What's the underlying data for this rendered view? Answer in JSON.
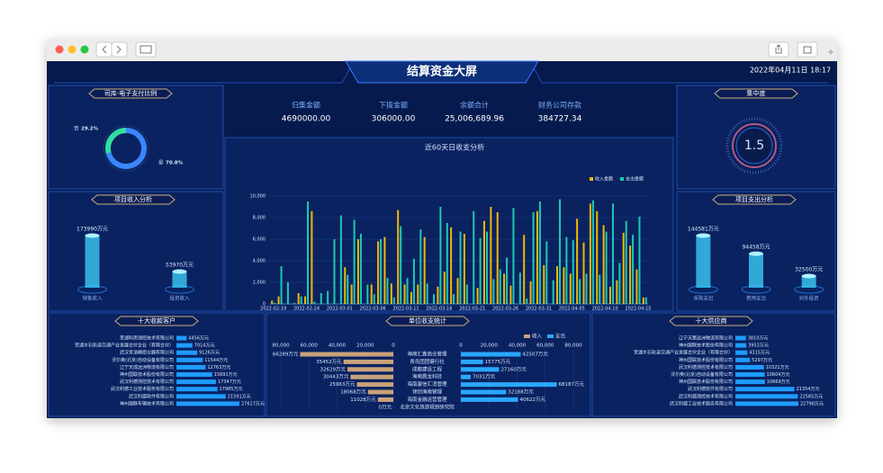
{
  "header": {
    "title": "结算资金大屏",
    "datetime": "2022年04月11日 18:17"
  },
  "stats": [
    {
      "label": "归集金额",
      "value": "4690000.00"
    },
    {
      "label": "下拨金额",
      "value": "306000.00"
    },
    {
      "label": "余额合计",
      "value": "25,006,689.96"
    },
    {
      "label": "财务公司存款",
      "value": "384727.34"
    }
  ],
  "chart_data": [
    {
      "type": "donut",
      "title": "司库-电子支付比例",
      "categories": [
        "否",
        "是"
      ],
      "values": [
        29.2,
        70.8
      ],
      "value_labels": [
        "29.2%",
        "70.8%"
      ],
      "colors": [
        "#2fe0a0",
        "#3a86ff"
      ]
    },
    {
      "type": "gauge",
      "title": "集中度",
      "value": 1.5
    },
    {
      "type": "cylinder",
      "title": "项目收入分析",
      "categories": [
        "销售收入",
        "投资收入"
      ],
      "values": [
        173990,
        53970
      ],
      "value_labels": [
        "173990万元",
        "53970万元"
      ],
      "color": "#3fd6ff"
    },
    {
      "type": "cylinder",
      "title": "项目支出分析",
      "categories": [
        "采购支出",
        "费用支出",
        "对外投资"
      ],
      "values": [
        144581,
        94458,
        32500
      ],
      "value_labels": [
        "144581万元",
        "94458万元",
        "32500万元"
      ],
      "color": "#3fd6ff"
    },
    {
      "type": "bar",
      "title": "近60天日收支分析",
      "categories": [
        "2022-02-19",
        null,
        null,
        null,
        null,
        "2022-02-24",
        null,
        null,
        null,
        null,
        "2022-03-01",
        null,
        null,
        null,
        null,
        "2022-03-06",
        null,
        null,
        null,
        null,
        "2022-03-11",
        null,
        null,
        null,
        null,
        "2022-03-16",
        null,
        null,
        null,
        null,
        "2022-03-21",
        null,
        null,
        null,
        null,
        "2022-03-26",
        null,
        null,
        null,
        null,
        "2022-03-31",
        null,
        null,
        null,
        null,
        "2022-04-05",
        null,
        null,
        null,
        null,
        "2022-04-10",
        null,
        null,
        null,
        null,
        "2022-04-15",
        null
      ],
      "series": [
        {
          "name": "收入金额",
          "color": "#f2b705",
          "values": [
            300,
            700,
            0,
            0,
            1000,
            700,
            8600,
            0,
            0,
            0,
            0,
            3400,
            1800,
            6000,
            0,
            1800,
            5800,
            6200,
            1900,
            8700,
            1800,
            1100,
            1800,
            6200,
            0,
            1600,
            3000,
            7100,
            2400,
            6500,
            0,
            1500,
            7700,
            9000,
            8500,
            2800,
            1700,
            0,
            6400,
            2100,
            8600,
            3600,
            0,
            3500,
            3400,
            2800,
            7900,
            5700,
            9300,
            8600,
            7300,
            1600,
            2200,
            6600,
            5400,
            3200,
            600
          ]
        },
        {
          "name": "支出金额",
          "color": "#1fc8b0",
          "values": [
            100,
            3500,
            2000,
            100,
            700,
            9500,
            200,
            1000,
            1200,
            6000,
            8200,
            2700,
            7800,
            6500,
            1800,
            900,
            6000,
            2400,
            600,
            7200,
            2400,
            4200,
            6900,
            1900,
            900,
            9000,
            7500,
            900,
            6700,
            1800,
            8600,
            6100,
            6700,
            2300,
            3200,
            4300,
            8900,
            2900,
            500,
            8500,
            9500,
            5800,
            2200,
            9700,
            6200,
            5900,
            2300,
            2800,
            9600,
            2700,
            6700,
            9300,
            3800,
            7700,
            6400,
            8100,
            600
          ]
        }
      ],
      "ylim": [
        0,
        10000
      ],
      "yticks": [
        0,
        {
          "value": 2000,
          "label": "2,000"
        },
        {
          "value": 4000,
          "label": "4,000"
        },
        {
          "value": 6000,
          "label": "6,000"
        },
        {
          "value": 8000,
          "label": "8,000"
        },
        {
          "value": 10000,
          "label": "10,000"
        }
      ],
      "grid": true
    },
    {
      "type": "hbar",
      "title": "十大收款客户",
      "categories": [
        "芜湖科思测控技术有限公司",
        "芜湖木石轨道交通产业发展合伙企业（有限合伙）",
        "武汉青浩精密仪器有限公司",
        "沃尔奥(北京)自动设备有限公司",
        "辽宁天成远洲物流有限公司",
        "神州国联技术股份有限公司",
        "武汉利德测控技术有限公司",
        "武汉利德工业技术服务有限公司",
        "武汉利德软件有限公司",
        "神州国联车辆技术有限公司"
      ],
      "values": [
        4456,
        7014,
        9126,
        11544,
        12763,
        15691,
        17347,
        17985,
        21591,
        27617
      ],
      "value_labels": [
        "4456万元",
        "7014万元",
        "9126万元",
        "11544万元",
        "12763万元",
        "15691万元",
        "17347万元",
        "17985万元",
        "21591万元",
        "27617万元"
      ],
      "color": "#1e9bff"
    },
    {
      "type": "butterfly",
      "title": "单位收支统计",
      "categories": [
        "海南汇鑫商业管理",
        "青岛团团健行社",
        "成都建设工程",
        "海南震龙科技",
        "海南骏信汇消管理",
        "领创海南管理",
        "海南金融运营管理",
        "北京文化旅游规划研究院"
      ],
      "series": [
        {
          "name": "收入",
          "color": "#c9a27a",
          "values": [
            66289,
            35452,
            32629,
            30443,
            25963,
            18068,
            11028,
            0
          ],
          "value_labels": [
            "66289万元",
            "35452万元",
            "32629万元",
            "30443万元",
            "25963万元",
            "18068万元",
            "11028万元",
            "0万元"
          ]
        },
        {
          "name": "支出",
          "color": "#2aa8ff",
          "values": [
            42507,
            15775,
            27160,
            7031,
            68187,
            32188,
            40622,
            0
          ],
          "value_labels": [
            "42507万元",
            "15775万元",
            "27160万元",
            "7031万元",
            "68187万元",
            "32188万元",
            "40622万元",
            null
          ]
        }
      ],
      "xlim": [
        0,
        80000
      ],
      "xticks": [
        0,
        {
          "value": 20000,
          "label": "20,000"
        },
        {
          "value": 40000,
          "label": "40,000"
        },
        {
          "value": 60000,
          "label": "60,000"
        },
        {
          "value": 80000,
          "label": "80,000"
        }
      ]
    },
    {
      "type": "hbar",
      "title": "十大供应商",
      "categories": [
        "辽宁天策远洲物流有限公司",
        "神州国联技术股份有限公司",
        "芜湖木石轨道交通产业发展合伙企业（有限合伙）",
        "神州国联技术股份有限公司",
        "武汉利德测控技术有限公司",
        "沃尔奥(北京)自动设备有限公司",
        "神州国联技术股份有限公司",
        "武汉利德软件有限公司",
        "武汉利德测控技术有限公司",
        "武汉利德工业技术服务有限公司"
      ],
      "values": [
        3810,
        3953,
        4315,
        5297,
        10321,
        10604,
        10669,
        21354,
        22585,
        22798
      ],
      "value_labels": [
        "3810万元",
        "3953万元",
        "4315万元",
        "5297万元",
        "10321万元",
        "10604万元",
        "10669万元",
        "21354万元",
        "22585万元",
        "22798万元"
      ],
      "color": "#1e9bff"
    }
  ]
}
